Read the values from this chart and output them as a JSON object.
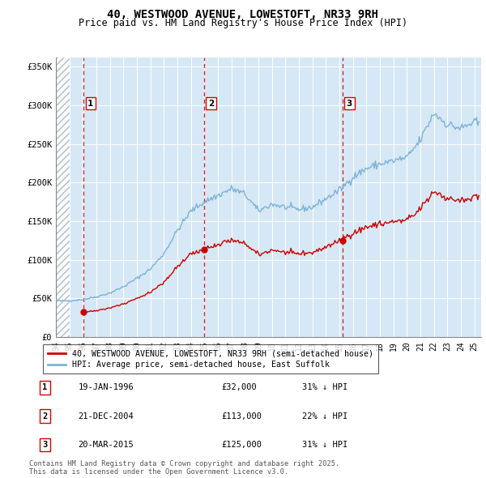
{
  "title": "40, WESTWOOD AVENUE, LOWESTOFT, NR33 9RH",
  "subtitle": "Price paid vs. HM Land Registry's House Price Index (HPI)",
  "legend_property": "40, WESTWOOD AVENUE, LOWESTOFT, NR33 9RH (semi-detached house)",
  "legend_hpi": "HPI: Average price, semi-detached house, East Suffolk",
  "ylabel_ticks": [
    "£0",
    "£50K",
    "£100K",
    "£150K",
    "£200K",
    "£250K",
    "£300K",
    "£350K"
  ],
  "ytick_values": [
    0,
    50000,
    100000,
    150000,
    200000,
    250000,
    300000,
    350000
  ],
  "ylim": [
    0,
    362000
  ],
  "transactions": [
    {
      "num": 1,
      "date": "19-JAN-1996",
      "price": 32000,
      "year": 1996.05,
      "hpi_pct": "31% ↓ HPI"
    },
    {
      "num": 2,
      "date": "21-DEC-2004",
      "price": 113000,
      "year": 2004.97,
      "hpi_pct": "22% ↓ HPI"
    },
    {
      "num": 3,
      "date": "20-MAR-2015",
      "price": 125000,
      "year": 2015.22,
      "hpi_pct": "31% ↓ HPI"
    }
  ],
  "hpi_line_color": "#7ab3d9",
  "price_line_color": "#cc0000",
  "vline_color": "#dd0000",
  "bg_color": "#d6e8f5",
  "footer": "Contains HM Land Registry data © Crown copyright and database right 2025.\nThis data is licensed under the Open Government Licence v3.0.",
  "xmin": 1994.0,
  "xmax": 2025.5,
  "hatch_xmax": 1995.0,
  "transaction_years": [
    1996.05,
    2004.97,
    2015.22
  ],
  "transaction_prices": [
    32000,
    113000,
    125000
  ]
}
